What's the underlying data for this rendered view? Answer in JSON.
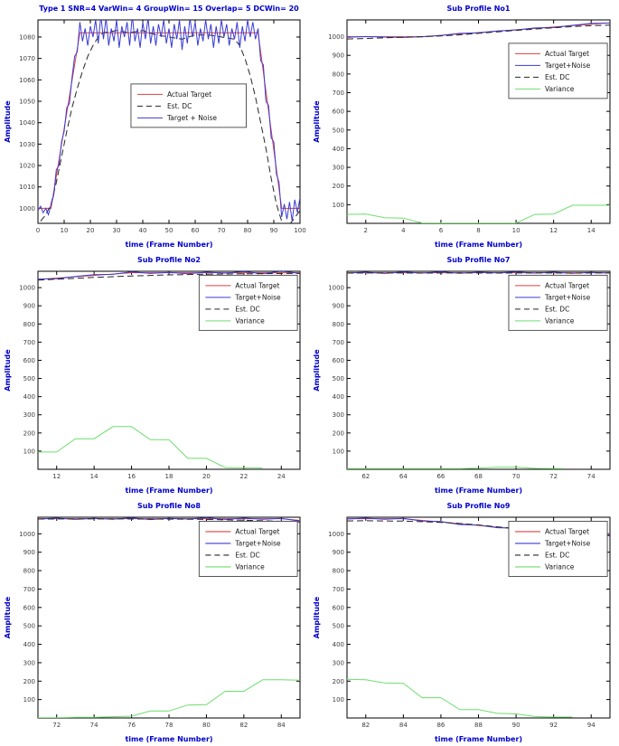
{
  "figure": {
    "background": "#ffffff"
  },
  "colors": {
    "title": "#0000cc",
    "axis_label": "#0000cc",
    "tick_label": "#3d3d3d",
    "axes_box": "#000000",
    "legend_border": "#444444",
    "legend_text": "#1a1a1a",
    "red": "#dd4040",
    "blue": "#3a3ad4",
    "black": "#262626",
    "green": "#6ede6e"
  },
  "chart_data": [
    {
      "type": "line",
      "title": "Type 1 SNR=4 VarWin= 4 GroupWin= 15 Overlap= 5 DCWin= 20",
      "xlabel": "time (Frame Number)",
      "ylabel": "Amplitude",
      "xlim": [
        0,
        100
      ],
      "ylim": [
        993,
        1088
      ],
      "xticks": [
        0,
        10,
        20,
        30,
        40,
        50,
        60,
        70,
        80,
        90,
        100
      ],
      "yticks": [
        1000,
        1010,
        1020,
        1030,
        1040,
        1050,
        1060,
        1070,
        1080
      ],
      "grid": false,
      "legend_position": "center",
      "legend": {
        "box": [
          0.355,
          0.315,
          0.44
        ],
        "entries": [
          {
            "label": "Actual Target",
            "series": 0
          },
          {
            "label": "Est. DC",
            "series": 1
          },
          {
            "label": "Target + Noise",
            "series": 2
          }
        ]
      },
      "series": [
        {
          "name": "Actual Target",
          "color_key": "red",
          "dash": false,
          "x": [
            0,
            5,
            16,
            84,
            93,
            100
          ],
          "y": [
            1000,
            1000,
            1082,
            1082,
            1000,
            1000
          ]
        },
        {
          "name": "Est. DC",
          "color_key": "black",
          "dash": true,
          "x": [
            1,
            3,
            5,
            7,
            9,
            11,
            13,
            15,
            17,
            19,
            21,
            23,
            25,
            30,
            35,
            40,
            45,
            50,
            55,
            60,
            65,
            70,
            75,
            77,
            79,
            81,
            83,
            85,
            87,
            89,
            91,
            93,
            95,
            97,
            100
          ],
          "y": [
            994,
            997,
            1002,
            1012,
            1024,
            1036,
            1047,
            1056,
            1064,
            1071,
            1076,
            1080,
            1082,
            1083,
            1082,
            1083,
            1081,
            1080,
            1079,
            1081,
            1081,
            1080,
            1079,
            1076,
            1070,
            1062,
            1052,
            1040,
            1028,
            1014,
            1002,
            994,
            991,
            994,
            999
          ]
        },
        {
          "name": "Target + Noise",
          "color_key": "blue",
          "dash": false,
          "x0": 0,
          "y": [
            999,
            1001,
            998,
            1000,
            997,
            1002,
            1006,
            1018,
            1020,
            1031,
            1036,
            1047,
            1049,
            1061,
            1071,
            1073,
            1087,
            1078,
            1084,
            1076,
            1085,
            1080,
            1088,
            1077,
            1090,
            1079,
            1089,
            1076,
            1084,
            1078,
            1088,
            1075,
            1085,
            1080,
            1087,
            1076,
            1090,
            1078,
            1084,
            1075,
            1087,
            1079,
            1089,
            1077,
            1085,
            1076,
            1086,
            1080,
            1088,
            1077,
            1084,
            1075,
            1086,
            1079,
            1088,
            1074,
            1085,
            1077,
            1089,
            1080,
            1087,
            1076,
            1084,
            1078,
            1088,
            1079,
            1086,
            1075,
            1085,
            1077,
            1088,
            1080,
            1086,
            1076,
            1084,
            1079,
            1087,
            1075,
            1085,
            1078,
            1088,
            1080,
            1087,
            1079,
            1084,
            1069,
            1067,
            1050,
            1048,
            1033,
            1031,
            1016,
            1012,
            996,
            1002,
            995,
            1003,
            994,
            1004,
            998,
            1005
          ]
        }
      ]
    },
    {
      "type": "line",
      "title": "Sub Profile No1",
      "xlabel": "time (Frame Number)",
      "ylabel": "Amplitude",
      "xlim": [
        1,
        15
      ],
      "ylim": [
        0,
        1090
      ],
      "xticks": [
        2,
        4,
        6,
        8,
        10,
        12,
        14
      ],
      "yticks": [
        100,
        200,
        300,
        400,
        500,
        600,
        700,
        800,
        900,
        1000
      ],
      "grid": false,
      "legend_position": "northeast",
      "legend": {
        "box": [
          0.615,
          0.115,
          0.375
        ],
        "entries": [
          {
            "label": "Actual Target",
            "series": 0
          },
          {
            "label": "Target+Noise",
            "series": 1
          },
          {
            "label": "Est. DC",
            "series": 2
          },
          {
            "label": "Variance",
            "series": 3
          }
        ]
      },
      "series": [
        {
          "name": "Actual Target",
          "color_key": "red",
          "dash": false,
          "x": [
            1,
            5,
            15
          ],
          "y": [
            1000,
            1000,
            1074
          ]
        },
        {
          "name": "Target+Noise",
          "color_key": "blue",
          "dash": false,
          "x0": 1,
          "y": [
            997,
            1001,
            998,
            996,
            1000,
            1006,
            1018,
            1020,
            1031,
            1036,
            1047,
            1049,
            1061,
            1071,
            1073
          ]
        },
        {
          "name": "Est. DC",
          "color_key": "black",
          "dash": true,
          "x0": 1,
          "y": [
            988,
            990,
            994,
            997,
            1000,
            1004,
            1010,
            1018,
            1026,
            1034,
            1041,
            1048,
            1054,
            1059,
            1062
          ]
        },
        {
          "name": "Variance",
          "color_key": "green",
          "dash": false,
          "x0": 1,
          "y": [
            48,
            50,
            30,
            28,
            2,
            1,
            1,
            1,
            1,
            2,
            48,
            50,
            97,
            97,
            97
          ]
        }
      ]
    },
    {
      "type": "line",
      "title": "Sub Profile No2",
      "xlabel": "time (Frame Number)",
      "ylabel": "Amplitude",
      "xlim": [
        11,
        25
      ],
      "ylim": [
        0,
        1090
      ],
      "xticks": [
        12,
        14,
        16,
        18,
        20,
        22,
        24
      ],
      "yticks": [
        100,
        200,
        300,
        400,
        500,
        600,
        700,
        800,
        900,
        1000
      ],
      "grid": false,
      "legend_position": "northeast",
      "legend": {
        "box": [
          0.615,
          0.02,
          0.375
        ],
        "entries": [
          {
            "label": "Actual Target",
            "series": 0
          },
          {
            "label": "Target+Noise",
            "series": 1
          },
          {
            "label": "Est. DC",
            "series": 2
          },
          {
            "label": "Variance",
            "series": 3
          }
        ]
      },
      "series": [
        {
          "name": "Actual Target",
          "color_key": "red",
          "dash": false,
          "x": [
            11,
            16,
            25
          ],
          "y": [
            1045,
            1082,
            1082
          ]
        },
        {
          "name": "Target+Noise",
          "color_key": "blue",
          "dash": false,
          "x0": 11,
          "y": [
            1047,
            1049,
            1061,
            1071,
            1073,
            1087,
            1078,
            1084,
            1076,
            1085,
            1080,
            1088,
            1077,
            1090,
            1079
          ]
        },
        {
          "name": "Est. DC",
          "color_key": "black",
          "dash": true,
          "x0": 11,
          "y": [
            1041,
            1046,
            1051,
            1056,
            1060,
            1064,
            1067,
            1070,
            1072,
            1074,
            1075,
            1076,
            1077,
            1078,
            1078
          ]
        },
        {
          "name": "Variance",
          "color_key": "green",
          "dash": false,
          "x": [
            11,
            12,
            13,
            14,
            15,
            16,
            17,
            18,
            19,
            20,
            21,
            22,
            23
          ],
          "y": [
            95,
            95,
            168,
            168,
            235,
            235,
            163,
            163,
            60,
            60,
            10,
            8,
            8
          ]
        }
      ]
    },
    {
      "type": "line",
      "title": "Sub Profile No7",
      "xlabel": "time (Frame Number)",
      "ylabel": "Amplitude",
      "xlim": [
        61,
        75
      ],
      "ylim": [
        0,
        1090
      ],
      "xticks": [
        62,
        64,
        66,
        68,
        70,
        72,
        74
      ],
      "yticks": [
        100,
        200,
        300,
        400,
        500,
        600,
        700,
        800,
        900,
        1000
      ],
      "grid": false,
      "legend_position": "northeast",
      "legend": {
        "box": [
          0.615,
          0.02,
          0.375
        ],
        "entries": [
          {
            "label": "Actual Target",
            "series": 0
          },
          {
            "label": "Target+Noise",
            "series": 1
          },
          {
            "label": "Est. DC",
            "series": 2
          },
          {
            "label": "Variance",
            "series": 3
          }
        ]
      },
      "series": [
        {
          "name": "Actual Target",
          "color_key": "red",
          "dash": false,
          "x": [
            61,
            75
          ],
          "y": [
            1082,
            1082
          ]
        },
        {
          "name": "Target+Noise",
          "color_key": "blue",
          "dash": false,
          "x0": 61,
          "y": [
            1080,
            1085,
            1078,
            1086,
            1080,
            1087,
            1079,
            1085,
            1081,
            1086,
            1080,
            1085,
            1079,
            1084,
            1080
          ]
        },
        {
          "name": "Est. DC",
          "color_key": "black",
          "dash": true,
          "x": [
            61,
            63,
            65,
            67,
            69,
            71,
            73,
            75
          ],
          "y": [
            1080,
            1081,
            1080,
            1081,
            1080,
            1081,
            1080,
            1081
          ]
        },
        {
          "name": "Variance",
          "color_key": "green",
          "dash": false,
          "x": [
            61,
            67,
            68,
            69,
            70,
            71,
            72.5
          ],
          "y": [
            4,
            4,
            6,
            12,
            12,
            5,
            4
          ]
        }
      ]
    },
    {
      "type": "line",
      "title": "Sub Profile No8",
      "xlabel": "time (Frame Number)",
      "ylabel": "Amplitude",
      "xlim": [
        71,
        85
      ],
      "ylim": [
        0,
        1090
      ],
      "xticks": [
        72,
        74,
        76,
        78,
        80,
        82,
        84
      ],
      "yticks": [
        100,
        200,
        300,
        400,
        500,
        600,
        700,
        800,
        900,
        1000
      ],
      "grid": false,
      "legend_position": "northeast",
      "legend": {
        "box": [
          0.615,
          0.02,
          0.375
        ],
        "entries": [
          {
            "label": "Actual Target",
            "series": 0
          },
          {
            "label": "Target+Noise",
            "series": 1
          },
          {
            "label": "Est. DC",
            "series": 2
          },
          {
            "label": "Variance",
            "series": 3
          }
        ]
      },
      "series": [
        {
          "name": "Actual Target",
          "color_key": "red",
          "dash": false,
          "x": [
            71,
            84,
            85
          ],
          "y": [
            1082,
            1082,
            1073
          ]
        },
        {
          "name": "Target+Noise",
          "color_key": "blue",
          "dash": false,
          "x0": 71,
          "y": [
            1080,
            1085,
            1078,
            1084,
            1079,
            1086,
            1077,
            1084,
            1080,
            1087,
            1078,
            1085,
            1079,
            1084,
            1069
          ]
        },
        {
          "name": "Est. DC",
          "color_key": "black",
          "dash": true,
          "x": [
            71,
            74,
            77,
            79,
            80,
            81,
            82,
            83,
            84,
            85
          ],
          "y": [
            1080,
            1081,
            1080,
            1079,
            1078,
            1076,
            1074,
            1071,
            1068,
            1064
          ]
        },
        {
          "name": "Variance",
          "color_key": "green",
          "dash": false,
          "x0": 71,
          "y": [
            1,
            1,
            4,
            4,
            7,
            10,
            38,
            38,
            70,
            72,
            145,
            145,
            207,
            207,
            205
          ]
        }
      ]
    },
    {
      "type": "line",
      "title": "Sub Profile No9",
      "xlabel": "time (Frame Number)",
      "ylabel": "Amplitude",
      "xlim": [
        81,
        95
      ],
      "ylim": [
        0,
        1090
      ],
      "xticks": [
        82,
        84,
        86,
        88,
        90,
        92,
        94
      ],
      "yticks": [
        100,
        200,
        300,
        400,
        500,
        600,
        700,
        800,
        900,
        1000
      ],
      "grid": false,
      "legend_position": "northeast",
      "legend": {
        "box": [
          0.615,
          0.02,
          0.375
        ],
        "entries": [
          {
            "label": "Actual Target",
            "series": 0
          },
          {
            "label": "Target+Noise",
            "series": 1
          },
          {
            "label": "Est. DC",
            "series": 2
          },
          {
            "label": "Variance",
            "series": 3
          }
        ]
      },
      "series": [
        {
          "name": "Actual Target",
          "color_key": "red",
          "dash": false,
          "x": [
            81,
            84,
            85,
            87,
            89,
            91,
            93,
            95
          ],
          "y": [
            1082,
            1082,
            1073,
            1055,
            1036,
            1018,
            1000,
            1000
          ]
        },
        {
          "name": "Target+Noise",
          "color_key": "blue",
          "dash": false,
          "x0": 81,
          "y": [
            1080,
            1085,
            1079,
            1084,
            1069,
            1067,
            1050,
            1048,
            1033,
            1031,
            1016,
            1012,
            996,
            1002,
            995
          ]
        },
        {
          "name": "Est. DC",
          "color_key": "black",
          "dash": true,
          "x0": 81,
          "y": [
            1070,
            1071,
            1070,
            1069,
            1066,
            1062,
            1056,
            1048,
            1038,
            1028,
            1016,
            1005,
            995,
            990,
            990
          ]
        },
        {
          "name": "Variance",
          "color_key": "green",
          "dash": false,
          "x": [
            81,
            82,
            83,
            84,
            85,
            86,
            87,
            88,
            89,
            90,
            91,
            92,
            93
          ],
          "y": [
            210,
            207,
            190,
            188,
            110,
            110,
            45,
            45,
            25,
            22,
            8,
            5,
            5
          ]
        }
      ]
    }
  ]
}
